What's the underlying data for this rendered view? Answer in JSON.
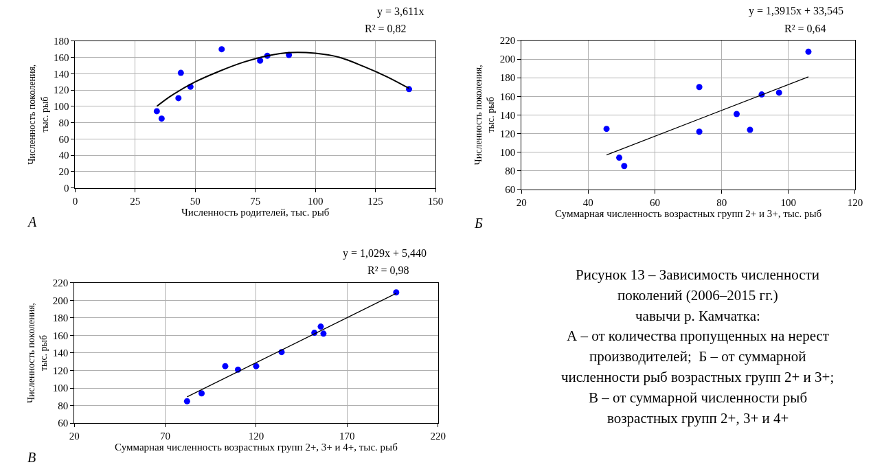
{
  "chart_data": [
    {
      "type": "scatter",
      "ylabel": "Численность поколения, тыс. рыб",
      "xlabel": "Численность родителей, тыс. рыб",
      "annotations": [
        "y = 3,611x",
        "R² = 0,82",
        "А"
      ],
      "xlim": [
        0,
        150
      ],
      "xticks": [
        0,
        25,
        50,
        75,
        100,
        125,
        150
      ],
      "ylim": [
        0,
        180
      ],
      "yticks": [
        0,
        20,
        40,
        60,
        80,
        100,
        120,
        140,
        160,
        180
      ],
      "grid": true,
      "marker": "circle",
      "series": [
        {
          "type": "scatter",
          "color": "#0000ff",
          "x": [
            34,
            36,
            43,
            44,
            48,
            61,
            77,
            80,
            89,
            139
          ],
          "values": [
            94,
            85,
            110,
            141,
            124,
            170,
            156,
            162,
            163,
            121
          ]
        },
        {
          "type": "line",
          "color": "#000000",
          "marker": "none",
          "x": [
            34,
            40,
            50,
            60,
            70,
            80,
            90,
            100,
            110,
            120,
            130,
            139
          ],
          "values": [
            100,
            113,
            130,
            143,
            154,
            162,
            166,
            165,
            160,
            149,
            136,
            122
          ]
        }
      ]
    },
    {
      "type": "scatter",
      "ylabel": "Численность поколения, тыс. рыб",
      "xlabel": "Суммарная численность возрастных групп 2+ и 3+, тыс. рыб",
      "annotations": [
        "y = 1,3915x + 33,545",
        "R² = 0,64",
        "Б"
      ],
      "xlim": [
        20,
        120
      ],
      "xticks": [
        20,
        40,
        60,
        80,
        100,
        120
      ],
      "ylim": [
        60,
        220
      ],
      "yticks": [
        60,
        80,
        100,
        120,
        140,
        160,
        180,
        200,
        220
      ],
      "grid": true,
      "marker": "circle",
      "series": [
        {
          "type": "scatter",
          "color": "#0000ff",
          "x": [
            45.5,
            49.3,
            50.8,
            73.3,
            73.3,
            84.5,
            88.5,
            92,
            97.2,
            106
          ],
          "values": [
            125,
            94,
            85,
            170,
            122,
            141,
            124,
            162,
            164,
            208
          ]
        },
        {
          "type": "line",
          "color": "#000000",
          "marker": "none",
          "x": [
            45.5,
            106
          ],
          "values": [
            97,
            181
          ]
        }
      ]
    },
    {
      "type": "scatter",
      "ylabel": "Численность поколения, тыс. рыб",
      "xlabel": "Суммарная численность возрастных групп 2+, 3+ и 4+, тыс. рыб",
      "annotations": [
        "y = 1,029x + 5,440",
        "R² = 0,98",
        "В"
      ],
      "xlim": [
        20,
        220
      ],
      "xticks": [
        20,
        70,
        120,
        170,
        220
      ],
      "ylim": [
        60,
        220
      ],
      "yticks": [
        60,
        80,
        100,
        120,
        140,
        160,
        180,
        200,
        220
      ],
      "grid": true,
      "marker": "circle",
      "series": [
        {
          "type": "scatter",
          "color": "#0000ff",
          "x": [
            82,
            90,
            103,
            110,
            120,
            134,
            152,
            155.5,
            157,
            197
          ],
          "values": [
            85,
            94,
            125,
            121,
            125,
            141,
            163,
            170,
            162,
            209
          ]
        },
        {
          "type": "line",
          "color": "#000000",
          "marker": "none",
          "x": [
            82,
            197
          ],
          "values": [
            90,
            208
          ]
        }
      ]
    },
    {
      "type": "other",
      "annotations": [
        "Рисунок 13 – Зависимость численности",
        "поколений (2006–2015 гг.)",
        "чавычи р. Камчатка:",
        "А – от количества пропущенных на нерест",
        "производителей;  Б – от суммарной",
        "численности рыб возрастных групп 2+ и 3+;",
        "В – от суммарной численности рыб",
        "возрастных групп 2+, 3+ и 4+"
      ]
    }
  ]
}
